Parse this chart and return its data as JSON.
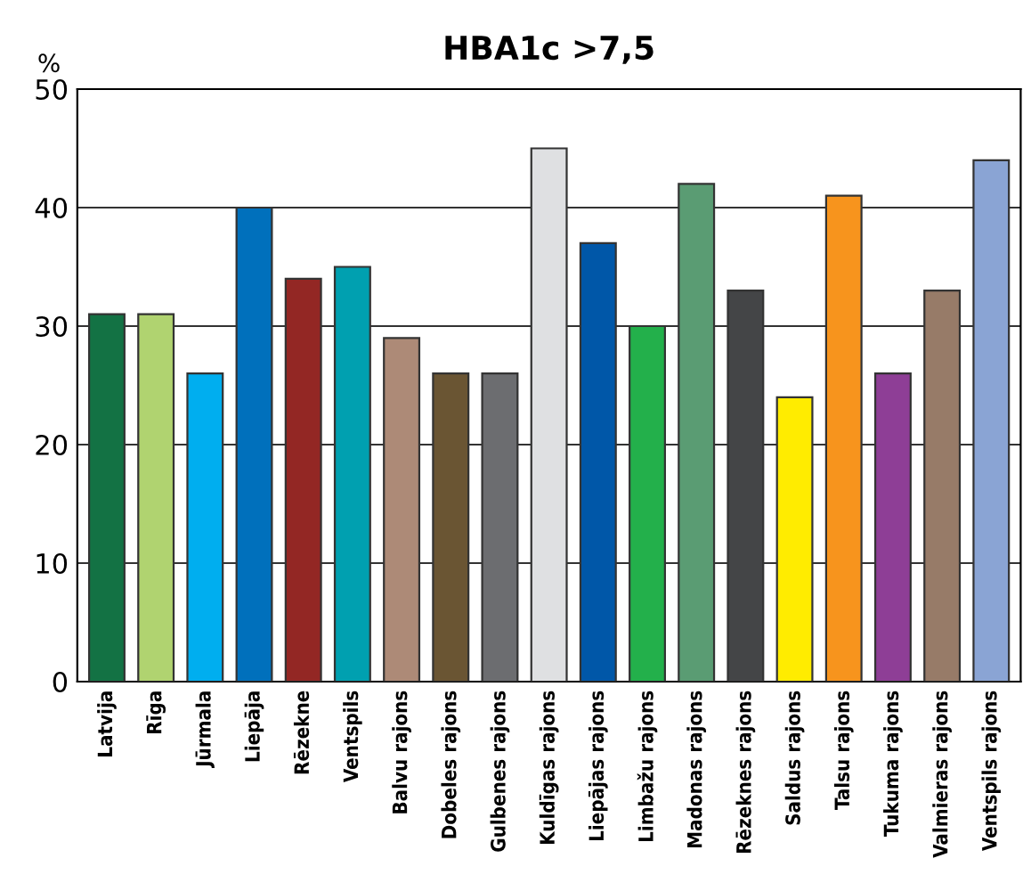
{
  "chart_data": {
    "type": "bar",
    "title": "HBA1c >7,5",
    "ylabel": "%",
    "categories": [
      "Latvija",
      "Rīga",
      "Jūrmala",
      "Liepāja",
      "Rēzekne",
      "Ventspils",
      "Balvu rajons",
      "Dobeles rajons",
      "Gulbenes rajons",
      "Kuldīgas rajons",
      "Liepājas rajons",
      "Limbažu rajons",
      "Madonas rajons",
      "Rēzeknes rajons",
      "Saldus rajons",
      "Talsu rajons",
      "Tukuma rajons",
      "Valmieras rajons",
      "Ventspils rajons"
    ],
    "values": [
      31,
      31,
      26,
      40,
      34,
      35,
      29,
      26,
      26,
      45,
      37,
      30,
      42,
      33,
      24,
      41,
      26,
      33,
      44
    ],
    "colors": [
      "#137244",
      "#b0d370",
      "#00aeef",
      "#0070bc",
      "#932724",
      "#00a0b0",
      "#ad8a77",
      "#6a5533",
      "#6c6d70",
      "#dfe0e2",
      "#0057a8",
      "#23b04b",
      "#5a9c73",
      "#444547",
      "#ffec00",
      "#f7941d",
      "#8e3e96",
      "#977b68",
      "#8aa4d4"
    ],
    "ylim": [
      0,
      50
    ],
    "yticks": [
      0,
      10,
      20,
      30,
      40,
      50
    ],
    "grid": "y"
  }
}
